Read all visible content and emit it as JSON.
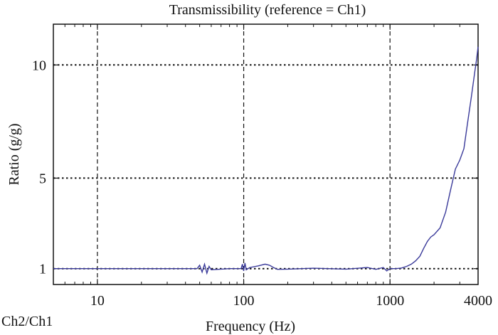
{
  "chart_data": {
    "type": "line",
    "title": "Transmissibility (reference = Ch1)",
    "xlabel": "Frequency (Hz)",
    "ylabel": "Ratio (g/g)",
    "corner_label": "Ch2/Ch1",
    "x_scale": "log",
    "xlim": [
      5,
      4000
    ],
    "ylim": [
      0.3,
      11.8
    ],
    "x_ticks": [
      10,
      100,
      1000,
      4000
    ],
    "x_tick_labels": [
      "10",
      "100",
      "1000",
      "4000"
    ],
    "y_ticks": [
      1,
      5,
      10
    ],
    "y_tick_labels": [
      "1",
      "5",
      "10"
    ],
    "grid": true,
    "line_color": "#3a3a9a",
    "series": [
      {
        "x": [
          5,
          20,
          48,
          50,
          52,
          54,
          56,
          58,
          60,
          80,
          96,
          98,
          100,
          102,
          104,
          110,
          125,
          140,
          150,
          160,
          170,
          200,
          300,
          500,
          700,
          800,
          900,
          950,
          1000,
          1050,
          1100,
          1200,
          1300,
          1400,
          1500,
          1600,
          1700,
          1800,
          1900,
          2000,
          2200,
          2400,
          2600,
          2800,
          3000,
          3200,
          3400,
          3600,
          3800,
          3900,
          4000
        ],
        "y": [
          1.0,
          1.0,
          1.0,
          1.15,
          0.85,
          1.2,
          0.8,
          1.1,
          0.95,
          1.0,
          1.0,
          1.2,
          0.9,
          1.25,
          0.95,
          1.05,
          1.12,
          1.2,
          1.15,
          1.05,
          0.97,
          0.98,
          1.02,
          0.98,
          1.05,
          0.97,
          1.05,
          0.9,
          1.0,
          1.0,
          1.0,
          1.03,
          1.1,
          1.2,
          1.35,
          1.55,
          1.9,
          2.2,
          2.4,
          2.5,
          2.8,
          3.5,
          4.5,
          5.4,
          5.8,
          6.3,
          7.5,
          8.6,
          9.7,
          10.2,
          10.8
        ]
      }
    ]
  }
}
